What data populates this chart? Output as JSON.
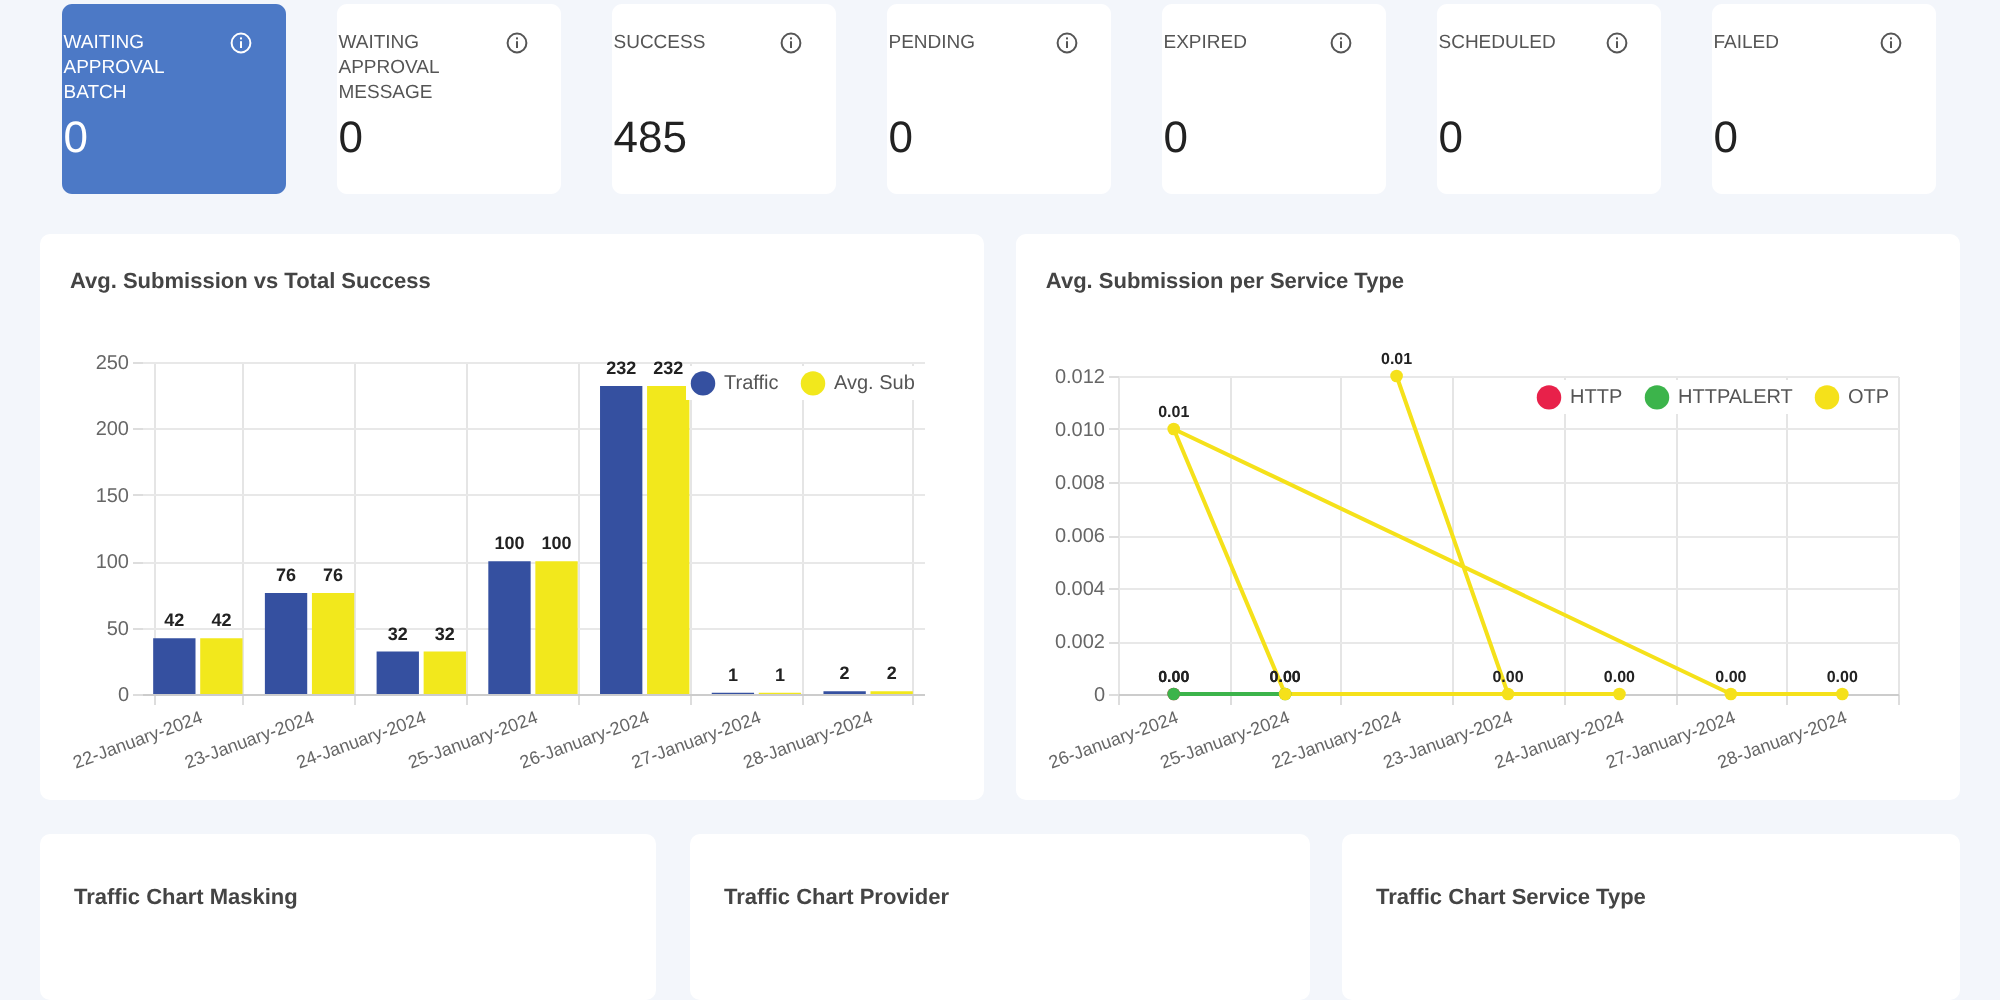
{
  "chart_data": [
    {
      "type": "other",
      "categories": [
        "WAITING APPROVAL BATCH",
        "WAITING APPROVAL MESSAGE",
        "SUCCESS",
        "PENDING",
        "EXPIRED",
        "SCHEDULED",
        "FAILED"
      ],
      "values": [
        0,
        0,
        485,
        0,
        0,
        0,
        0
      ],
      "data_labels": true,
      "colors": [
        "#4c79c6",
        "#ffffff",
        "#ffffff",
        "#ffffff",
        "#ffffff",
        "#ffffff",
        "#ffffff"
      ]
    },
    {
      "type": "bar",
      "title": "Avg. Submission vs Total Success",
      "categories": [
        "22-January-2024",
        "23-January-2024",
        "24-January-2024",
        "25-January-2024",
        "26-January-2024",
        "27-January-2024",
        "28-January-2024"
      ],
      "series": [
        {
          "name": "Traffic",
          "color": "#3550a0",
          "values": [
            42,
            76,
            32,
            100,
            232,
            1,
            2
          ]
        },
        {
          "name": "Avg. Sub",
          "color": "#f2e81c",
          "values": [
            42,
            76,
            32,
            100,
            232,
            1,
            2
          ]
        }
      ],
      "ylim": [
        0,
        250
      ],
      "yticks": [
        0,
        50,
        100,
        150,
        200,
        250
      ],
      "grid": true,
      "legend": "top right",
      "data_labels": true
    },
    {
      "type": "line",
      "title": "Avg. Submission per Service Type",
      "categories": [
        "26-January-2024",
        "25-January-2024",
        "22-January-2024",
        "23-January-2024",
        "24-January-2024",
        "27-January-2024",
        "28-January-2024"
      ],
      "series": [
        {
          "name": "HTTP",
          "color": "#e8214a",
          "x": [
            "26-January-2024"
          ],
          "values": [
            0
          ],
          "value_labels": [
            "0.00"
          ]
        },
        {
          "name": "HTTPALERT",
          "color": "#3cb44b",
          "x": [
            "26-January-2024",
            "25-January-2024"
          ],
          "values": [
            0,
            0
          ],
          "value_labels": [
            "0.00",
            "0.00"
          ]
        },
        {
          "name": "OTP",
          "color": "#f5e11a",
          "x": [
            "22-January-2024",
            "23-January-2024",
            "24-January-2024",
            "25-January-2024",
            "26-January-2024",
            "27-January-2024",
            "28-January-2024"
          ],
          "values": [
            0.012,
            0,
            0,
            0,
            0.01,
            0,
            0
          ],
          "value_labels": [
            "0.01",
            "0.00",
            "0.00",
            "0.00",
            "0.01",
            "0.00",
            "0.00"
          ]
        }
      ],
      "ylim": [
        0,
        0.012
      ],
      "yticks": [
        0,
        0.002,
        0.004,
        0.006,
        0.008,
        {
          "value": 0.01,
          "label": "0.010"
        },
        0.012
      ],
      "grid": true,
      "legend": "top right",
      "marker": "circle"
    },
    {
      "type": "other",
      "title": "Traffic Chart Masking"
    },
    {
      "type": "other",
      "title": "Traffic Chart Provider"
    },
    {
      "type": "other",
      "title": "Traffic Chart Service Type"
    }
  ]
}
